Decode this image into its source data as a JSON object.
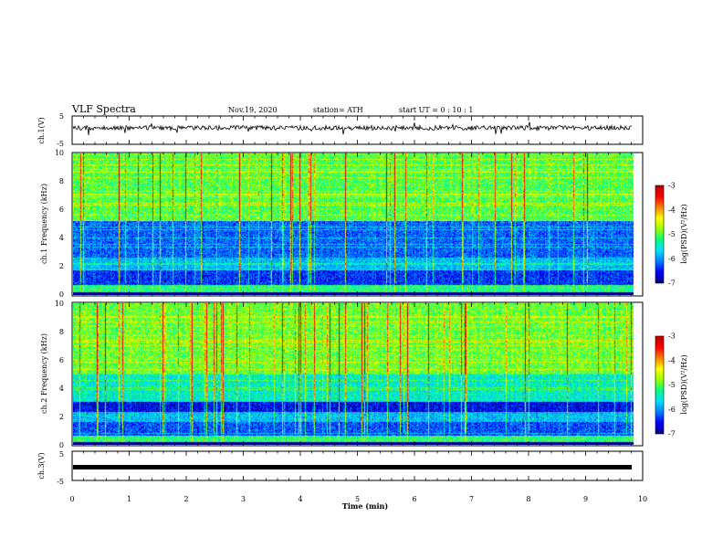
{
  "header": {
    "title": "VLF Spectra",
    "date": "Nov.19, 2020",
    "station": "station= ATH",
    "start_ut": "start  UT =   0 : 10 : 1"
  },
  "chart_data": [
    {
      "type": "line",
      "panel": "ch1-waveform",
      "ylabel": "ch.1(V)",
      "ylim": [
        -5,
        5
      ],
      "yticks": [
        "5",
        "-5"
      ],
      "note": "noisy waveform around approx 0.8 V with occasional spikes"
    },
    {
      "type": "heatmap",
      "panel": "ch1-spectrogram",
      "ylabel": "ch.1 Frequency (kHz)",
      "ylim": [
        0,
        10
      ],
      "yticks": [
        "0",
        "2",
        "4",
        "6",
        "8",
        "10"
      ],
      "colorbar": {
        "label": "log(PSD)(V²/Hz)",
        "range": [
          -7,
          -3
        ],
        "ticks": [
          "-3",
          "-4",
          "-5",
          "-6",
          "-7"
        ]
      }
    },
    {
      "type": "heatmap",
      "panel": "ch2-spectrogram",
      "ylabel": "ch.2 Frequency (kHz)",
      "ylim": [
        0,
        10
      ],
      "yticks": [
        "0",
        "2",
        "4",
        "6",
        "8",
        "10"
      ],
      "colorbar": {
        "label": "log(PSD)(V²/Hz)",
        "range": [
          -7,
          -3
        ],
        "ticks": [
          "-3",
          "-4",
          "-5",
          "-6",
          "-7"
        ]
      }
    },
    {
      "type": "line",
      "panel": "ch3-waveform",
      "ylabel": "ch.3(V)",
      "ylim": [
        -5,
        5
      ],
      "yticks": [
        "5",
        "-5"
      ],
      "note": "flat thick trace at approx 0 V"
    }
  ],
  "xaxis": {
    "label": "Time  (min)",
    "xlim": [
      0,
      10
    ],
    "ticks": [
      "0",
      "1",
      "2",
      "3",
      "4",
      "5",
      "6",
      "7",
      "8",
      "9",
      "10"
    ]
  },
  "colors": {
    "background": "#ffffff",
    "axis": "#000000",
    "colormap": [
      "#000080",
      "#0000ff",
      "#0080ff",
      "#00e0ff",
      "#00ff80",
      "#a0ff00",
      "#ffff00",
      "#ff8000",
      "#ff0000",
      "#c00000"
    ]
  }
}
